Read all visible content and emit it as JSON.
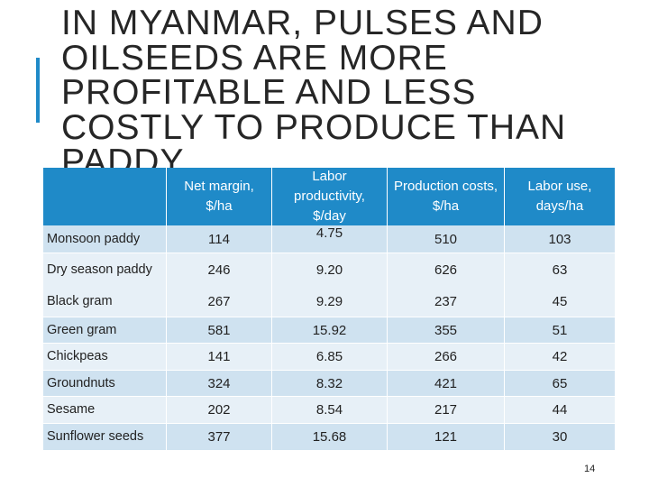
{
  "title_lines": [
    "IN MYANMAR, PULSES AND",
    "OILSEEDS ARE MORE",
    "PROFITABLE AND LESS",
    "COSTLY TO PRODUCE THAN",
    "PADDY"
  ],
  "table": {
    "header": [
      "Net margin, $/ha",
      "Labor productivity, $/day",
      "Production costs, $/ha",
      "Labor use, days/ha"
    ],
    "rows": [
      [
        "Monsoon paddy",
        "114",
        "4.75",
        "510",
        "103"
      ],
      [
        "Dry season paddy",
        "246",
        "9.20",
        "626",
        "63"
      ],
      [
        "Black gram",
        "267",
        "9.29",
        "237",
        "45"
      ],
      [
        "Green gram",
        "581",
        "15.92",
        "355",
        "51"
      ],
      [
        "Chickpeas",
        "141",
        "6.85",
        "266",
        "42"
      ],
      [
        "Groundnuts",
        "324",
        "8.32",
        "421",
        "65"
      ],
      [
        "Sesame",
        "202",
        "8.54",
        "217",
        "44"
      ],
      [
        "Sunflower seeds",
        "377",
        "15.68",
        "121",
        "30"
      ]
    ]
  },
  "page_number": "14"
}
